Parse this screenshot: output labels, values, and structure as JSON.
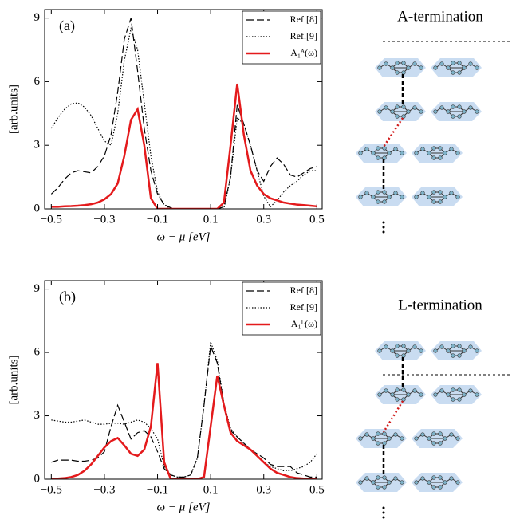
{
  "chart_data": [
    {
      "type": "line",
      "panel": "(a)",
      "x_label": "ω − μ [eV]",
      "y_label": "[arb.units]",
      "x": [
        -0.5,
        -0.475,
        -0.45,
        -0.425,
        -0.4,
        -0.375,
        -0.35,
        -0.325,
        -0.3,
        -0.275,
        -0.25,
        -0.225,
        -0.2,
        -0.175,
        -0.15,
        -0.125,
        -0.1,
        -0.075,
        -0.05,
        -0.025,
        0,
        0.025,
        0.05,
        0.075,
        0.1,
        0.125,
        0.15,
        0.175,
        0.2,
        0.225,
        0.25,
        0.275,
        0.3,
        0.325,
        0.35,
        0.375,
        0.4,
        0.425,
        0.45,
        0.475,
        0.5
      ],
      "series": [
        {
          "name": "Ref.[8]",
          "color": "#000000",
          "line_style": "dashed",
          "values": [
            0.7,
            1.0,
            1.4,
            1.7,
            1.8,
            1.75,
            1.7,
            2.0,
            2.5,
            3.5,
            5.5,
            8.0,
            9.0,
            6.5,
            3.8,
            1.8,
            0.7,
            0.2,
            0.05,
            0,
            0,
            0,
            0,
            0,
            0,
            0,
            0.1,
            1.5,
            4.9,
            4.0,
            3.0,
            1.8,
            1.3,
            2.0,
            2.4,
            2.1,
            1.6,
            1.5,
            1.7,
            1.9,
            2.0
          ]
        },
        {
          "name": "Ref.[9]",
          "color": "#000000",
          "line_style": "dotted",
          "values": [
            3.8,
            4.3,
            4.7,
            4.95,
            5.0,
            4.8,
            4.4,
            3.8,
            3.2,
            3.0,
            4.5,
            7.0,
            8.5,
            7.5,
            5.0,
            2.5,
            0.8,
            0.2,
            0,
            0,
            0,
            0,
            0,
            0,
            0,
            0,
            0,
            1.5,
            4.3,
            4.0,
            3.0,
            1.8,
            0.6,
            0.1,
            0.4,
            0.8,
            1.1,
            1.3,
            1.6,
            1.8,
            1.8
          ]
        },
        {
          "name": "A₁ᴬ(ω)",
          "color": "#e41a1c",
          "line_style": "solid",
          "values": [
            0.1,
            0.1,
            0.12,
            0.13,
            0.15,
            0.18,
            0.22,
            0.3,
            0.45,
            0.7,
            1.2,
            2.5,
            4.2,
            4.7,
            3.0,
            0.5,
            0,
            0,
            0,
            0,
            0,
            0,
            0,
            0,
            0,
            0,
            0.3,
            3.0,
            5.9,
            3.5,
            1.8,
            1.1,
            0.7,
            0.5,
            0.4,
            0.3,
            0.25,
            0.2,
            0.18,
            0.15,
            0.12
          ]
        }
      ],
      "xlim": [
        -0.525,
        0.52
      ],
      "ylim": [
        0,
        9.4
      ],
      "xticks": [
        {
          "value": -0.5,
          "label": "−0.5"
        },
        {
          "value": -0.3,
          "label": "−0.3"
        },
        {
          "value": -0.1,
          "label": "−0.1"
        },
        0.1,
        0.3,
        0.5
      ],
      "yticks": [
        0,
        3,
        6,
        9
      ],
      "legend": "upper right"
    },
    {
      "type": "line",
      "panel": "(b)",
      "x_label": "ω − μ [eV]",
      "y_label": "[arb.units]",
      "x": [
        -0.5,
        -0.475,
        -0.45,
        -0.425,
        -0.4,
        -0.375,
        -0.35,
        -0.325,
        -0.3,
        -0.275,
        -0.25,
        -0.225,
        -0.2,
        -0.175,
        -0.15,
        -0.125,
        -0.1,
        -0.075,
        -0.05,
        -0.025,
        0,
        0.025,
        0.05,
        0.075,
        0.1,
        0.125,
        0.15,
        0.175,
        0.2,
        0.225,
        0.25,
        0.275,
        0.3,
        0.325,
        0.35,
        0.375,
        0.4,
        0.425,
        0.45,
        0.475,
        0.5
      ],
      "series": [
        {
          "name": "Ref.[8]",
          "color": "#000000",
          "line_style": "dashed",
          "values": [
            0.8,
            0.9,
            0.9,
            0.9,
            0.85,
            0.85,
            0.9,
            1.0,
            1.3,
            2.5,
            3.5,
            2.7,
            1.9,
            2.2,
            2.3,
            2.0,
            1.3,
            0.5,
            0.2,
            0.1,
            0.1,
            0.2,
            1.0,
            3.5,
            6.3,
            5.5,
            3.5,
            2.3,
            2.0,
            1.7,
            1.4,
            1.2,
            1.0,
            0.7,
            0.6,
            0.6,
            0.6,
            0.3,
            0.2,
            0.1,
            0.1
          ]
        },
        {
          "name": "Ref.[9]",
          "color": "#000000",
          "line_style": "dotted",
          "values": [
            2.8,
            2.75,
            2.7,
            2.7,
            2.75,
            2.8,
            2.7,
            2.6,
            2.6,
            2.65,
            2.65,
            2.6,
            2.7,
            2.8,
            2.7,
            2.4,
            1.9,
            0.6,
            0.2,
            0.1,
            0.1,
            0.2,
            1.0,
            3.5,
            6.5,
            5.6,
            3.6,
            2.4,
            2.0,
            1.7,
            1.4,
            1.1,
            0.8,
            0.6,
            0.5,
            0.4,
            0.4,
            0.5,
            0.6,
            0.8,
            1.2
          ]
        },
        {
          "name": "A₁ᴸ(ω)",
          "color": "#e41a1c",
          "line_style": "solid",
          "values": [
            0,
            0.03,
            0.05,
            0.1,
            0.2,
            0.4,
            0.7,
            1.1,
            1.5,
            1.8,
            1.95,
            1.6,
            1.2,
            1.1,
            1.4,
            2.5,
            5.5,
            0.8,
            0,
            0,
            0,
            0,
            0,
            0.1,
            2.5,
            4.9,
            3.5,
            2.2,
            1.8,
            1.6,
            1.4,
            1.1,
            0.8,
            0.5,
            0.3,
            0.2,
            0.1,
            0.05,
            0.03,
            0.02,
            0.01
          ]
        }
      ],
      "xlim": [
        -0.525,
        0.52
      ],
      "ylim": [
        0,
        9.4
      ],
      "xticks": [
        {
          "value": -0.5,
          "label": "−0.5"
        },
        {
          "value": -0.3,
          "label": "−0.3"
        },
        {
          "value": -0.1,
          "label": "−0.1"
        },
        0.1,
        0.3,
        0.5
      ],
      "yticks": [
        0,
        3,
        6,
        9
      ],
      "legend": "upper right"
    }
  ],
  "diagrams": [
    {
      "label": "A-termination"
    },
    {
      "label": "L-termination"
    }
  ]
}
